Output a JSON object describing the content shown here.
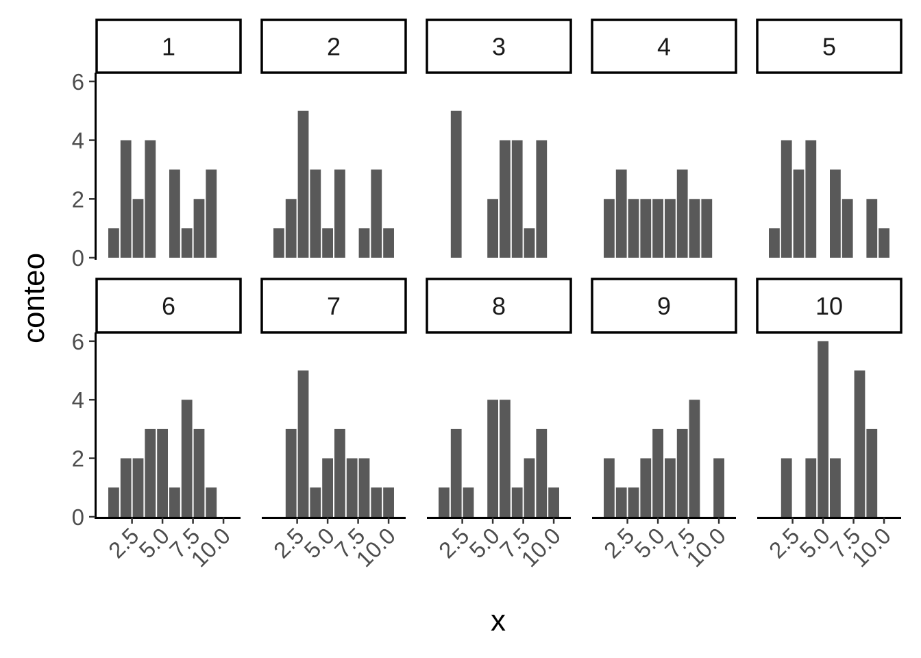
{
  "chart_data": {
    "type": "bar",
    "layout": "facet-grid-histogram",
    "xlabel": "x",
    "ylabel": "conteo",
    "bin_width": 1,
    "bin_centers": [
      1,
      2,
      3,
      4,
      5,
      6,
      7,
      8,
      9,
      10
    ],
    "x_ticks": [
      2.5,
      5.0,
      7.5,
      10.0
    ],
    "x_tick_labels": [
      "2.5",
      "5.0",
      "7.5",
      "10.0"
    ],
    "y_ticks": [
      0,
      2,
      4,
      6
    ],
    "y_tick_labels": [
      "0",
      "2",
      "4",
      "6"
    ],
    "xlim": [
      -0.4,
      11.4
    ],
    "ylim": [
      0,
      6.3
    ],
    "grid": false,
    "colors": {
      "bar": "#595959",
      "axis": "#000000",
      "tick_label": "#4d4d4d"
    },
    "panels": [
      {
        "label": "1",
        "counts": [
          1,
          4,
          2,
          4,
          0,
          3,
          1,
          2,
          3,
          0
        ]
      },
      {
        "label": "2",
        "counts": [
          1,
          2,
          5,
          3,
          1,
          3,
          0,
          1,
          3,
          1
        ]
      },
      {
        "label": "3",
        "counts": [
          0,
          5,
          0,
          0,
          2,
          4,
          4,
          1,
          4,
          0
        ]
      },
      {
        "label": "4",
        "counts": [
          2,
          3,
          2,
          2,
          2,
          2,
          3,
          2,
          2,
          0
        ]
      },
      {
        "label": "5",
        "counts": [
          1,
          4,
          3,
          4,
          0,
          3,
          2,
          0,
          2,
          1
        ]
      },
      {
        "label": "6",
        "counts": [
          1,
          2,
          2,
          3,
          3,
          1,
          4,
          3,
          1,
          0
        ]
      },
      {
        "label": "7",
        "counts": [
          0,
          3,
          5,
          1,
          2,
          3,
          2,
          2,
          1,
          1
        ]
      },
      {
        "label": "8",
        "counts": [
          1,
          3,
          1,
          0,
          4,
          4,
          1,
          2,
          3,
          1
        ]
      },
      {
        "label": "9",
        "counts": [
          2,
          1,
          1,
          2,
          3,
          2,
          3,
          4,
          0,
          2
        ]
      },
      {
        "label": "10",
        "counts": [
          0,
          2,
          0,
          2,
          6,
          2,
          0,
          5,
          3,
          0
        ]
      }
    ]
  }
}
